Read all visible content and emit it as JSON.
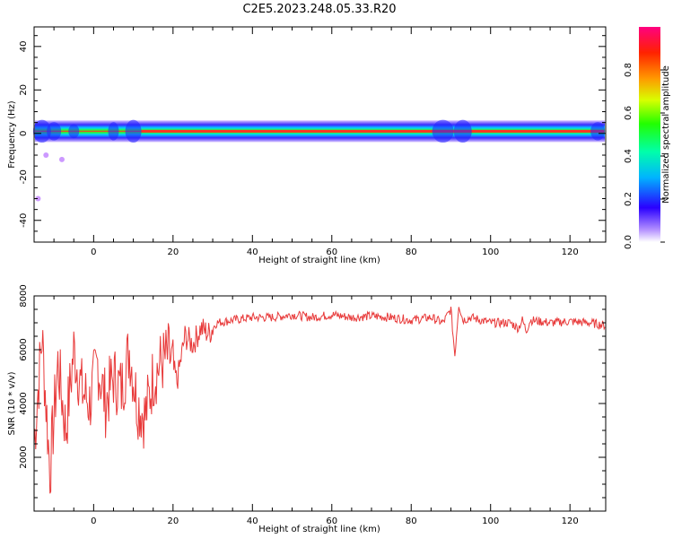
{
  "title": "C2E5.2023.248.05.33.R20",
  "colors": {
    "snr_line": "#e83a3a",
    "band_core": "#ff3322",
    "band_mid": "#33ee33",
    "band_edge": "#2222ff",
    "band_halo": "#cc99ff"
  },
  "chart_data": [
    {
      "type": "heatmap",
      "title": "",
      "xlabel": "Height of straight line (km)",
      "ylabel": "Frequency (Hz)",
      "xlim": [
        -15,
        129
      ],
      "ylim": [
        -50,
        49
      ],
      "x_ticks": [
        "0",
        "20",
        "40",
        "60",
        "80",
        "100",
        "120"
      ],
      "y_ticks": [
        "40",
        "20",
        "0",
        "-20",
        "-40"
      ],
      "band_center_hz": 1,
      "colorbar": {
        "label": "Normalized spectral amplitude",
        "range": [
          0,
          1
        ],
        "ticks": [
          "0.0",
          "0.2",
          "0.4",
          "0.6",
          "0.8"
        ],
        "colormap": "rainbow"
      },
      "grid": false
    },
    {
      "type": "line",
      "title": "",
      "xlabel": "Height of straight line (km)",
      "ylabel": "SNR (10 * v/v)",
      "xlim": [
        -15,
        129
      ],
      "ylim": [
        0,
        8000
      ],
      "x_ticks": [
        "0",
        "20",
        "40",
        "60",
        "80",
        "100",
        "120"
      ],
      "y_ticks": [
        "8000",
        "6000",
        "4000",
        "2000"
      ],
      "series": [
        {
          "x": [
            -15,
            -13,
            -11,
            -9,
            -7,
            -5,
            -3,
            -1,
            1,
            3,
            5,
            7,
            9,
            11,
            13,
            15,
            17,
            19,
            21,
            23,
            25,
            27,
            29,
            31,
            35,
            40,
            45,
            50,
            55,
            60,
            65,
            70,
            75,
            80,
            85,
            88,
            90,
            91,
            92,
            93,
            95,
            100,
            105,
            107,
            108,
            109,
            110,
            115,
            120,
            125,
            129
          ],
          "y": [
            2500,
            6500,
            1500,
            5500,
            3000,
            6000,
            4500,
            4000,
            5500,
            4000,
            5000,
            4500,
            6000,
            4000,
            3500,
            5000,
            5500,
            5800,
            4800,
            6500,
            6200,
            6800,
            6600,
            7000,
            7100,
            7200,
            7200,
            7300,
            7200,
            7300,
            7200,
            7250,
            7200,
            7100,
            7200,
            7000,
            7500,
            5800,
            7700,
            7100,
            7200,
            7000,
            7000,
            6800,
            7100,
            6700,
            7100,
            7000,
            7050,
            7000,
            6900
          ]
        }
      ],
      "grid": false
    }
  ]
}
